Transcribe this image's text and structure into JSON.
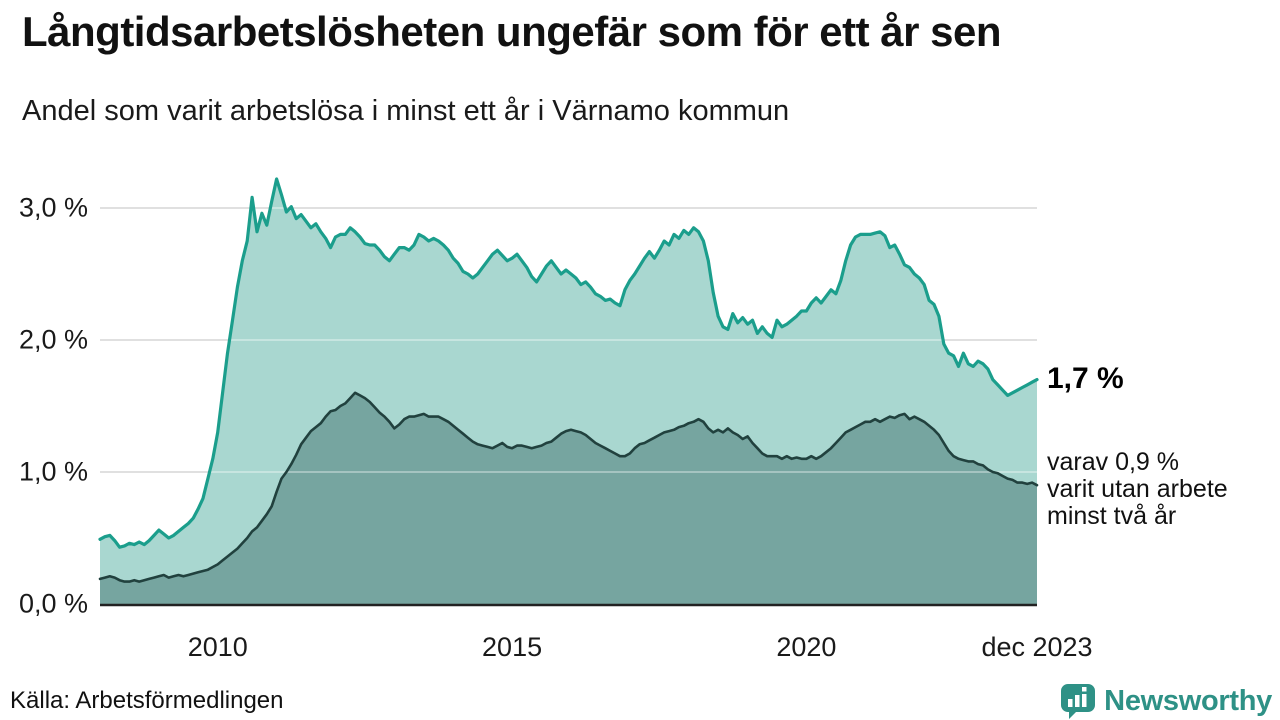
{
  "header": {
    "title": "Långtidsarbetslösheten ungefär som för ett år sen",
    "subtitle": "Andel som varit arbetslösa i minst ett år i Värnamo kommun"
  },
  "footer": {
    "source": "Källa: Arbetsförmedlingen",
    "brand_name": "Newsworthy"
  },
  "colors": {
    "series1_line": "#1b9e8c",
    "series1_fill": "#a9d7d0",
    "series2_line": "#21413e",
    "series2_fill": "#76a5a0",
    "grid": "#cfcfcf",
    "grid_overlay": "rgba(255,255,255,0.35)",
    "axis": "#222222",
    "brand": "#2e9186"
  },
  "chart_data": {
    "type": "area",
    "title": "Långtidsarbetslösheten ungefär som för ett år sen",
    "subtitle": "Andel som varit arbetslösa i minst ett år i Värnamo kommun",
    "unit": "%",
    "x_start": "jan 2008",
    "x_end": "dec 2023",
    "x_interval": "monthly",
    "ylim": [
      0,
      3.2
    ],
    "grid": "horizontal",
    "legend_position": "right-annotations",
    "y_ticks": [
      {
        "value": 3,
        "label": "3,0 %"
      },
      {
        "value": 2,
        "label": "2,0 %"
      },
      {
        "value": 1,
        "label": "1,0 %"
      },
      {
        "value": 0,
        "label": "0,0 %"
      }
    ],
    "x_ticks": [
      {
        "month_index": 24,
        "label": "2010"
      },
      {
        "month_index": 84,
        "label": "2015"
      },
      {
        "month_index": 144,
        "label": "2020"
      },
      {
        "month_index": 191,
        "label": "dec 2023"
      }
    ],
    "annotations": {
      "end_value_series1": "1,7 %",
      "series2_note": "varav 0,9 %\nvarit utan arbete\nminst två år"
    },
    "series": [
      {
        "name": "Arbetslösa minst ett år",
        "end_value": 1.7,
        "values": [
          0.49,
          0.51,
          0.52,
          0.48,
          0.43,
          0.44,
          0.46,
          0.45,
          0.47,
          0.45,
          0.48,
          0.52,
          0.56,
          0.53,
          0.5,
          0.52,
          0.55,
          0.58,
          0.61,
          0.65,
          0.72,
          0.8,
          0.95,
          1.1,
          1.3,
          1.6,
          1.9,
          2.15,
          2.4,
          2.6,
          2.75,
          3.08,
          2.82,
          2.96,
          2.87,
          3.05,
          3.22,
          3.1,
          2.97,
          3.01,
          2.92,
          2.95,
          2.9,
          2.85,
          2.88,
          2.82,
          2.77,
          2.7,
          2.78,
          2.8,
          2.8,
          2.85,
          2.82,
          2.78,
          2.73,
          2.72,
          2.72,
          2.68,
          2.63,
          2.6,
          2.65,
          2.7,
          2.7,
          2.68,
          2.72,
          2.8,
          2.78,
          2.75,
          2.77,
          2.75,
          2.72,
          2.68,
          2.62,
          2.58,
          2.52,
          2.5,
          2.47,
          2.5,
          2.55,
          2.6,
          2.65,
          2.68,
          2.64,
          2.6,
          2.62,
          2.65,
          2.6,
          2.55,
          2.48,
          2.44,
          2.5,
          2.56,
          2.6,
          2.55,
          2.5,
          2.53,
          2.5,
          2.47,
          2.42,
          2.44,
          2.4,
          2.35,
          2.33,
          2.3,
          2.31,
          2.28,
          2.26,
          2.38,
          2.45,
          2.5,
          2.56,
          2.62,
          2.67,
          2.62,
          2.68,
          2.75,
          2.72,
          2.8,
          2.77,
          2.83,
          2.8,
          2.85,
          2.82,
          2.75,
          2.6,
          2.36,
          2.18,
          2.1,
          2.08,
          2.2,
          2.13,
          2.17,
          2.12,
          2.15,
          2.05,
          2.1,
          2.05,
          2.02,
          2.15,
          2.1,
          2.12,
          2.15,
          2.18,
          2.22,
          2.22,
          2.28,
          2.32,
          2.28,
          2.33,
          2.38,
          2.35,
          2.45,
          2.6,
          2.72,
          2.78,
          2.8,
          2.8,
          2.8,
          2.81,
          2.82,
          2.79,
          2.7,
          2.72,
          2.65,
          2.57,
          2.55,
          2.5,
          2.47,
          2.42,
          2.3,
          2.27,
          2.18,
          1.97,
          1.9,
          1.88,
          1.8,
          1.9,
          1.82,
          1.8,
          1.84,
          1.82,
          1.78,
          1.7,
          1.66,
          1.62,
          1.58,
          1.6,
          1.62,
          1.64,
          1.66,
          1.68,
          1.7
        ]
      },
      {
        "name": "varav utan arbete minst två år",
        "end_value": 0.9,
        "values": [
          0.19,
          0.2,
          0.21,
          0.2,
          0.18,
          0.17,
          0.17,
          0.18,
          0.17,
          0.18,
          0.19,
          0.2,
          0.21,
          0.22,
          0.2,
          0.21,
          0.22,
          0.21,
          0.22,
          0.23,
          0.24,
          0.25,
          0.26,
          0.28,
          0.3,
          0.33,
          0.36,
          0.39,
          0.42,
          0.46,
          0.5,
          0.55,
          0.58,
          0.63,
          0.68,
          0.74,
          0.85,
          0.95,
          1.0,
          1.06,
          1.13,
          1.21,
          1.26,
          1.31,
          1.34,
          1.37,
          1.42,
          1.46,
          1.47,
          1.5,
          1.52,
          1.56,
          1.6,
          1.58,
          1.56,
          1.53,
          1.49,
          1.45,
          1.42,
          1.38,
          1.33,
          1.36,
          1.4,
          1.42,
          1.42,
          1.43,
          1.44,
          1.42,
          1.42,
          1.42,
          1.4,
          1.38,
          1.35,
          1.32,
          1.29,
          1.26,
          1.23,
          1.21,
          1.2,
          1.19,
          1.18,
          1.2,
          1.22,
          1.19,
          1.18,
          1.2,
          1.2,
          1.19,
          1.18,
          1.19,
          1.2,
          1.22,
          1.23,
          1.26,
          1.29,
          1.31,
          1.32,
          1.31,
          1.3,
          1.28,
          1.25,
          1.22,
          1.2,
          1.18,
          1.16,
          1.14,
          1.12,
          1.12,
          1.14,
          1.18,
          1.21,
          1.22,
          1.24,
          1.26,
          1.28,
          1.3,
          1.31,
          1.32,
          1.34,
          1.35,
          1.37,
          1.38,
          1.4,
          1.38,
          1.33,
          1.3,
          1.32,
          1.3,
          1.33,
          1.3,
          1.28,
          1.25,
          1.27,
          1.22,
          1.18,
          1.14,
          1.12,
          1.12,
          1.12,
          1.1,
          1.12,
          1.1,
          1.11,
          1.1,
          1.1,
          1.12,
          1.1,
          1.12,
          1.15,
          1.18,
          1.22,
          1.26,
          1.3,
          1.32,
          1.34,
          1.36,
          1.38,
          1.38,
          1.4,
          1.38,
          1.4,
          1.42,
          1.41,
          1.43,
          1.44,
          1.4,
          1.42,
          1.4,
          1.38,
          1.35,
          1.32,
          1.28,
          1.22,
          1.16,
          1.12,
          1.1,
          1.09,
          1.08,
          1.08,
          1.06,
          1.05,
          1.02,
          1.0,
          0.99,
          0.97,
          0.95,
          0.94,
          0.92,
          0.92,
          0.91,
          0.92,
          0.9
        ]
      }
    ]
  }
}
